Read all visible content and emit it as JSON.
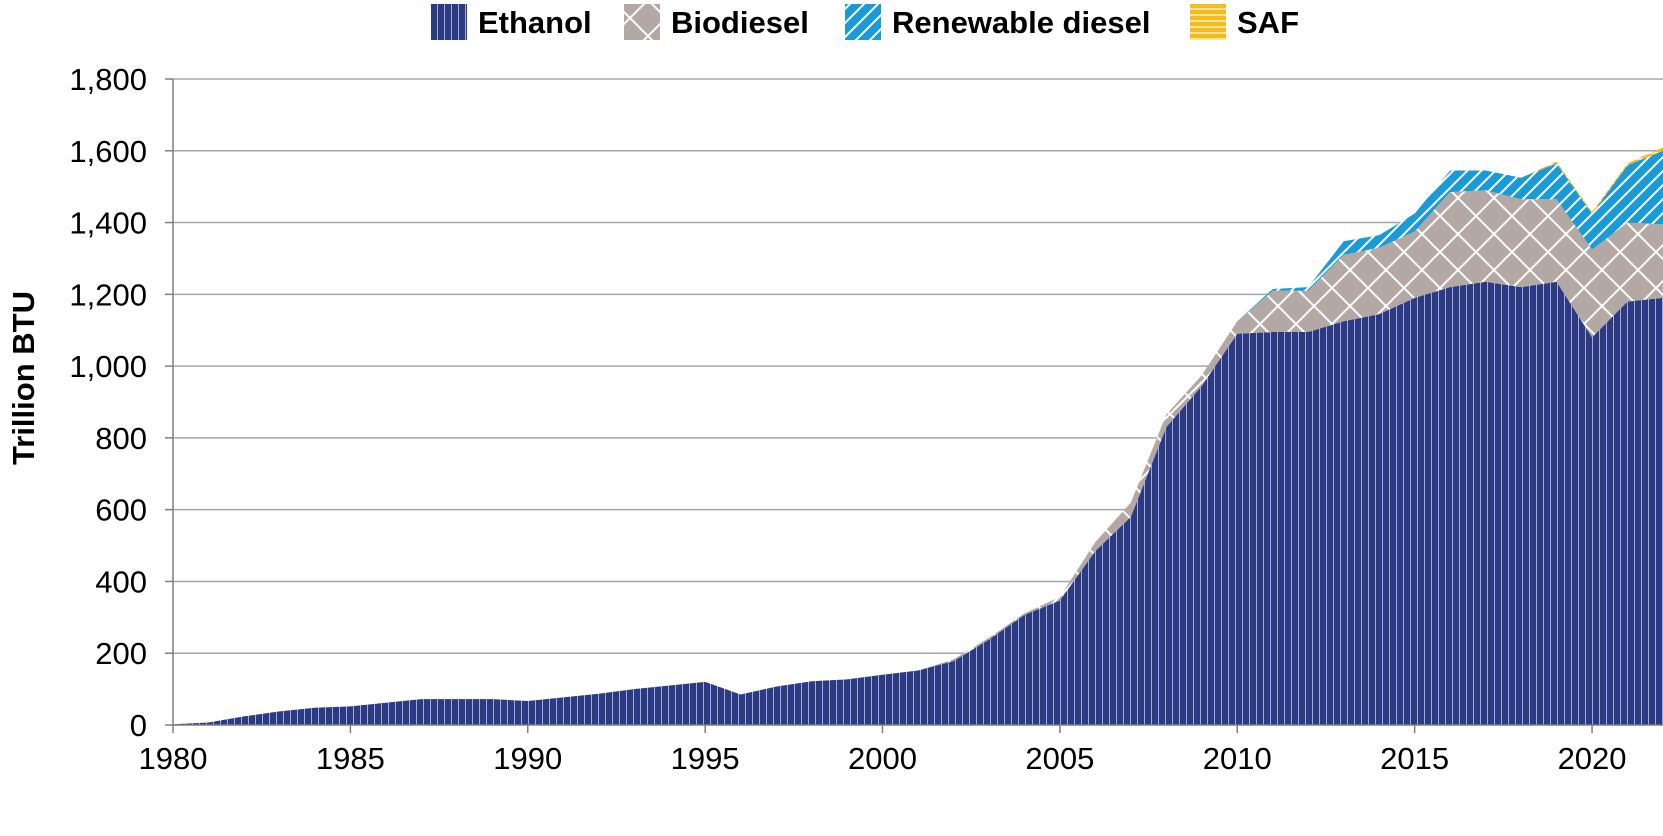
{
  "chart_data": {
    "type": "area",
    "stacked": true,
    "title": "",
    "xlabel": "",
    "ylabel": "Trillion BTU",
    "xlim": [
      1980,
      2022
    ],
    "ylim": [
      0,
      1800
    ],
    "x_ticks": [
      1980,
      1985,
      1990,
      1995,
      2000,
      2005,
      2010,
      2015,
      2020
    ],
    "y_ticks": [
      0,
      200,
      400,
      600,
      800,
      1000,
      1200,
      1400,
      1600,
      1800
    ],
    "grid": "horizontal",
    "legend_position": "top-center",
    "x": [
      1980,
      1981,
      1982,
      1983,
      1984,
      1985,
      1986,
      1987,
      1988,
      1989,
      1990,
      1991,
      1992,
      1993,
      1994,
      1995,
      1996,
      1997,
      1998,
      1999,
      2000,
      2001,
      2002,
      2003,
      2004,
      2005,
      2006,
      2007,
      2008,
      2009,
      2010,
      2011,
      2012,
      2013,
      2014,
      2015,
      2016,
      2017,
      2018,
      2019,
      2020,
      2021,
      2022
    ],
    "series": [
      {
        "name": "Ethanol",
        "color": "#2B3A82",
        "pattern": "vertical-lines",
        "values": [
          2,
          7,
          24,
          38,
          48,
          52,
          62,
          72,
          72,
          72,
          67,
          77,
          87,
          100,
          110,
          120,
          85,
          107,
          122,
          127,
          140,
          152,
          178,
          238,
          307,
          347,
          485,
          580,
          830,
          945,
          1090,
          1095,
          1095,
          1125,
          1145,
          1190,
          1220,
          1235,
          1220,
          1235,
          1080,
          1180,
          1190
        ]
      },
      {
        "name": "Biodiesel",
        "color": "#B3A8A3",
        "pattern": "crosshatch",
        "values": [
          0,
          0,
          0,
          0,
          0,
          0,
          0,
          0,
          0,
          0,
          0,
          0,
          0,
          0,
          0,
          0,
          0,
          0,
          0,
          0,
          0,
          0,
          5,
          5,
          4,
          10,
          25,
          40,
          35,
          30,
          35,
          115,
          115,
          185,
          185,
          185,
          265,
          255,
          245,
          230,
          245,
          220,
          205
        ]
      },
      {
        "name": "Renewable diesel",
        "color": "#1A9AD6",
        "pattern": "diagonal-lines",
        "values": [
          0,
          0,
          0,
          0,
          0,
          0,
          0,
          0,
          0,
          0,
          0,
          0,
          0,
          0,
          0,
          0,
          0,
          0,
          0,
          0,
          0,
          0,
          0,
          0,
          0,
          0,
          0,
          0,
          0,
          0,
          0,
          5,
          10,
          38,
          35,
          50,
          60,
          55,
          60,
          100,
          100,
          160,
          205
        ]
      },
      {
        "name": "SAF",
        "color": "#F5BC1A",
        "pattern": "horizontal-lines",
        "values": [
          0,
          0,
          0,
          0,
          0,
          0,
          0,
          0,
          0,
          0,
          0,
          0,
          0,
          0,
          0,
          0,
          0,
          0,
          0,
          0,
          0,
          0,
          0,
          0,
          0,
          0,
          0,
          0,
          0,
          0,
          0,
          0,
          0,
          0,
          0,
          0,
          0,
          0,
          0,
          5,
          5,
          5,
          10
        ]
      }
    ]
  }
}
